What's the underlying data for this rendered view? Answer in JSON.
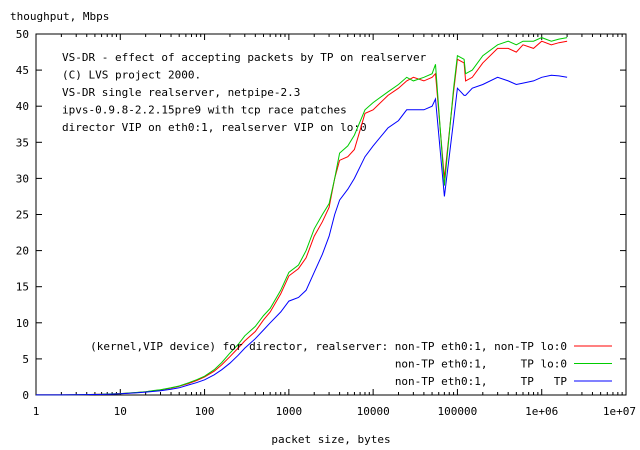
{
  "chart_data": {
    "type": "line",
    "title": "",
    "ylabel": "thoughput, Mbps",
    "xlabel": "packet size, bytes",
    "x_scale": "log",
    "xlim": [
      1,
      10000000
    ],
    "ylim": [
      0,
      50
    ],
    "x_ticks": [
      {
        "value": 1,
        "label": "1"
      },
      {
        "value": 10,
        "label": "10"
      },
      {
        "value": 100,
        "label": "100"
      },
      {
        "value": 1000,
        "label": "1000"
      },
      {
        "value": 10000,
        "label": "10000"
      },
      {
        "value": 100000,
        "label": "100000"
      },
      {
        "value": 1000000,
        "label": "1e+06"
      },
      {
        "value": 10000000,
        "label": "1e+07"
      }
    ],
    "y_ticks": [
      0,
      5,
      10,
      15,
      20,
      25,
      30,
      35,
      40,
      45,
      50
    ],
    "grid": false,
    "legend_position": "bottom-right",
    "legend_title": "(kernel,VIP device) for director, realserver:",
    "annotations": [
      "VS-DR - effect of accepting packets by TP on realserver",
      "(C) LVS project 2000.",
      "VS-DR single realserver, netpipe-2.3",
      "ipvs-0.9.8-2.2.15pre9 with tcp race patches",
      "director VIP on eth0:1, realserver VIP on lo:0"
    ],
    "series": [
      {
        "name": "non-TP eth0:1, non-TP lo:0",
        "color": "#ff0000",
        "points": [
          [
            1,
            0.01
          ],
          [
            2,
            0.02
          ],
          [
            3,
            0.03
          ],
          [
            4,
            0.05
          ],
          [
            5,
            0.08
          ],
          [
            6,
            0.1
          ],
          [
            8,
            0.14
          ],
          [
            10,
            0.2
          ],
          [
            12,
            0.25
          ],
          [
            16,
            0.35
          ],
          [
            20,
            0.45
          ],
          [
            25,
            0.6
          ],
          [
            30,
            0.7
          ],
          [
            40,
            0.95
          ],
          [
            50,
            1.2
          ],
          [
            65,
            1.6
          ],
          [
            80,
            2.0
          ],
          [
            100,
            2.5
          ],
          [
            130,
            3.3
          ],
          [
            160,
            4.2
          ],
          [
            200,
            5.3
          ],
          [
            250,
            6.5
          ],
          [
            300,
            7.5
          ],
          [
            400,
            8.8
          ],
          [
            500,
            10.4
          ],
          [
            600,
            11.5
          ],
          [
            800,
            14.0
          ],
          [
            1000,
            16.5
          ],
          [
            1300,
            17.5
          ],
          [
            1600,
            19.0
          ],
          [
            2000,
            22.0
          ],
          [
            2500,
            24.0
          ],
          [
            3000,
            26.0
          ],
          [
            3500,
            30.0
          ],
          [
            4000,
            32.5
          ],
          [
            5000,
            33.0
          ],
          [
            6000,
            34.0
          ],
          [
            8000,
            39.0
          ],
          [
            10000,
            39.5
          ],
          [
            15000,
            41.5
          ],
          [
            20000,
            42.5
          ],
          [
            25000,
            43.5
          ],
          [
            30000,
            44.0
          ],
          [
            40000,
            43.5
          ],
          [
            50000,
            44.0
          ],
          [
            55000,
            44.5
          ],
          [
            70000,
            30.0
          ],
          [
            90000,
            42.0
          ],
          [
            100000,
            46.5
          ],
          [
            120000,
            46.0
          ],
          [
            125000,
            43.5
          ],
          [
            150000,
            44.0
          ],
          [
            200000,
            46.0
          ],
          [
            300000,
            48.0
          ],
          [
            400000,
            48.0
          ],
          [
            500000,
            47.5
          ],
          [
            600000,
            48.5
          ],
          [
            800000,
            48.0
          ],
          [
            1000000,
            49.0
          ],
          [
            1300000,
            48.5
          ],
          [
            1600000,
            48.8
          ],
          [
            2000000,
            49.0
          ]
        ]
      },
      {
        "name": "non-TP eth0:1,     TP lo:0",
        "color": "#00cc00",
        "points": [
          [
            1,
            0.01
          ],
          [
            2,
            0.02
          ],
          [
            3,
            0.03
          ],
          [
            4,
            0.05
          ],
          [
            5,
            0.08
          ],
          [
            6,
            0.1
          ],
          [
            8,
            0.15
          ],
          [
            10,
            0.2
          ],
          [
            12,
            0.26
          ],
          [
            16,
            0.36
          ],
          [
            20,
            0.46
          ],
          [
            25,
            0.62
          ],
          [
            30,
            0.72
          ],
          [
            40,
            1.0
          ],
          [
            50,
            1.25
          ],
          [
            65,
            1.7
          ],
          [
            80,
            2.1
          ],
          [
            100,
            2.6
          ],
          [
            130,
            3.5
          ],
          [
            160,
            4.5
          ],
          [
            200,
            5.8
          ],
          [
            250,
            7.0
          ],
          [
            300,
            8.2
          ],
          [
            400,
            9.5
          ],
          [
            500,
            11.0
          ],
          [
            600,
            12.0
          ],
          [
            800,
            14.5
          ],
          [
            1000,
            17.0
          ],
          [
            1300,
            18.0
          ],
          [
            1600,
            20.0
          ],
          [
            2000,
            23.0
          ],
          [
            2500,
            25.0
          ],
          [
            3000,
            26.5
          ],
          [
            3500,
            30.0
          ],
          [
            4000,
            33.5
          ],
          [
            5000,
            34.5
          ],
          [
            6000,
            36.0
          ],
          [
            8000,
            39.5
          ],
          [
            10000,
            40.5
          ],
          [
            15000,
            42.0
          ],
          [
            20000,
            43.0
          ],
          [
            25000,
            44.0
          ],
          [
            30000,
            43.5
          ],
          [
            40000,
            44.0
          ],
          [
            50000,
            44.5
          ],
          [
            55000,
            45.8
          ],
          [
            70000,
            29.0
          ],
          [
            90000,
            42.5
          ],
          [
            100000,
            47.0
          ],
          [
            120000,
            46.5
          ],
          [
            125000,
            44.5
          ],
          [
            150000,
            45.0
          ],
          [
            200000,
            47.0
          ],
          [
            300000,
            48.5
          ],
          [
            400000,
            49.0
          ],
          [
            500000,
            48.5
          ],
          [
            600000,
            49.0
          ],
          [
            800000,
            49.0
          ],
          [
            1000000,
            49.5
          ],
          [
            1300000,
            49.0
          ],
          [
            1600000,
            49.3
          ],
          [
            2000000,
            49.5
          ]
        ]
      },
      {
        "name": "non-TP eth0:1,     TP   TP",
        "color": "#0000ff",
        "points": [
          [
            1,
            0.01
          ],
          [
            2,
            0.02
          ],
          [
            3,
            0.03
          ],
          [
            4,
            0.05
          ],
          [
            5,
            0.07
          ],
          [
            6,
            0.09
          ],
          [
            8,
            0.12
          ],
          [
            10,
            0.17
          ],
          [
            12,
            0.22
          ],
          [
            16,
            0.3
          ],
          [
            20,
            0.4
          ],
          [
            25,
            0.5
          ],
          [
            30,
            0.6
          ],
          [
            40,
            0.8
          ],
          [
            50,
            1.0
          ],
          [
            65,
            1.4
          ],
          [
            80,
            1.7
          ],
          [
            100,
            2.1
          ],
          [
            130,
            2.8
          ],
          [
            160,
            3.5
          ],
          [
            200,
            4.4
          ],
          [
            250,
            5.5
          ],
          [
            300,
            6.5
          ],
          [
            400,
            7.8
          ],
          [
            500,
            9.0
          ],
          [
            600,
            10.0
          ],
          [
            800,
            11.5
          ],
          [
            1000,
            13.0
          ],
          [
            1300,
            13.5
          ],
          [
            1600,
            14.5
          ],
          [
            2000,
            17.0
          ],
          [
            2500,
            19.5
          ],
          [
            3000,
            22.0
          ],
          [
            3500,
            25.0
          ],
          [
            4000,
            27.0
          ],
          [
            5000,
            28.5
          ],
          [
            6000,
            30.0
          ],
          [
            8000,
            33.0
          ],
          [
            10000,
            34.5
          ],
          [
            15000,
            37.0
          ],
          [
            20000,
            38.0
          ],
          [
            25000,
            39.5
          ],
          [
            30000,
            39.5
          ],
          [
            40000,
            39.5
          ],
          [
            50000,
            40.0
          ],
          [
            55000,
            41.0
          ],
          [
            70000,
            27.5
          ],
          [
            90000,
            38.0
          ],
          [
            100000,
            42.5
          ],
          [
            120000,
            41.5
          ],
          [
            125000,
            41.5
          ],
          [
            150000,
            42.5
          ],
          [
            200000,
            43.0
          ],
          [
            300000,
            44.0
          ],
          [
            400000,
            43.5
          ],
          [
            500000,
            43.0
          ],
          [
            600000,
            43.2
          ],
          [
            800000,
            43.5
          ],
          [
            1000000,
            44.0
          ],
          [
            1300000,
            44.3
          ],
          [
            1600000,
            44.2
          ],
          [
            2000000,
            44.0
          ]
        ]
      }
    ]
  }
}
